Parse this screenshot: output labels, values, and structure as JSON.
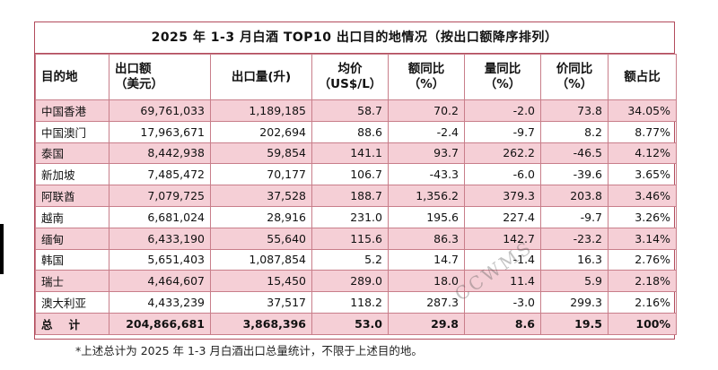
{
  "title": "2025 年 1-3 月白酒  TOP10 出口目的地情况（按出口额降序排列）",
  "headers": [
    [
      "目的地"
    ],
    [
      "出口额",
      "（美元）"
    ],
    [
      "出口量(升)"
    ],
    [
      "均价",
      "（US$/L）"
    ],
    [
      "额同比",
      "（%）"
    ],
    [
      "量同比",
      "（%）"
    ],
    [
      "价同比",
      "（%）"
    ],
    [
      "额占比"
    ]
  ],
  "rows": [
    [
      "中国香港",
      "69,761,033",
      "1,189,185",
      "58.7",
      "70.2",
      "-2.0",
      "73.8",
      "34.05%"
    ],
    [
      "中国澳门",
      "17,963,671",
      "202,694",
      "88.6",
      "-2.4",
      "-9.7",
      "8.2",
      "8.77%"
    ],
    [
      "泰国",
      "8,442,938",
      "59,854",
      "141.1",
      "93.7",
      "262.2",
      "-46.5",
      "4.12%"
    ],
    [
      "新加坡",
      "7,485,472",
      "70,177",
      "106.7",
      "-43.3",
      "-6.0",
      "-39.6",
      "3.65%"
    ],
    [
      "阿联酋",
      "7,079,725",
      "37,528",
      "188.7",
      "1,356.2",
      "379.3",
      "203.8",
      "3.46%"
    ],
    [
      "越南",
      "6,681,024",
      "28,916",
      "231.0",
      "195.6",
      "227.4",
      "-9.7",
      "3.26%"
    ],
    [
      "缅甸",
      "6,433,190",
      "55,640",
      "115.6",
      "86.3",
      "142.7",
      "-23.2",
      "3.14%"
    ],
    [
      "韩国",
      "5,651,403",
      "1,087,854",
      "5.2",
      "14.7",
      "-1.4",
      "16.3",
      "2.76%"
    ],
    [
      "瑞士",
      "4,464,607",
      "15,450",
      "289.0",
      "18.0",
      "11.4",
      "5.9",
      "2.18%"
    ],
    [
      "澳大利亚",
      "4,433,239",
      "37,517",
      "118.2",
      "287.3",
      "-3.0",
      "299.3",
      "2.16%"
    ]
  ],
  "total": [
    "总计",
    "204,866,681",
    "3,868,396",
    "53.0",
    "29.8",
    "8.6",
    "19.5",
    "100%"
  ],
  "footnote": "*上述总计为 2025 年 1-3 月白酒出口总量统计，不限于上述目的地。",
  "watermark": "CCWMS",
  "colors": {
    "border": "#b24b5c",
    "row_highlight": "#f5cfd6"
  }
}
